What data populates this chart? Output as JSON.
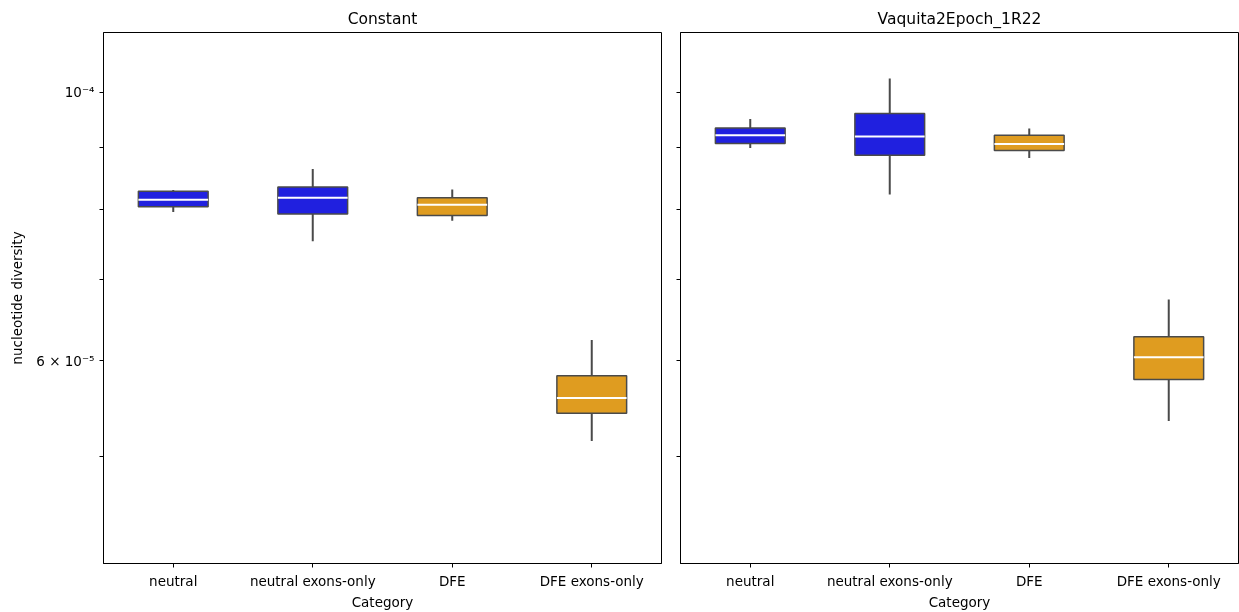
{
  "chart_data": [
    {
      "type": "box",
      "title": "Constant",
      "xlabel": "Category",
      "ylabel": "nucleotide diversity",
      "categories": [
        "neutral",
        "neutral exons-only",
        "DFE",
        "DFE exons-only"
      ],
      "colors": [
        "#2020df",
        "#2020df",
        "#df9c20",
        "#df9c20"
      ],
      "boxes": [
        {
          "low": 7.96e-05,
          "q1": 8.04e-05,
          "median": 8.15e-05,
          "q3": 8.28e-05,
          "high": 8.3e-05
        },
        {
          "low": 7.53e-05,
          "q1": 7.93e-05,
          "median": 8.18e-05,
          "q3": 8.35e-05,
          "high": 8.64e-05
        },
        {
          "low": 7.83e-05,
          "q1": 7.91e-05,
          "median": 8.07e-05,
          "q3": 8.18e-05,
          "high": 8.31e-05
        },
        {
          "low": 5.15e-05,
          "q1": 5.43e-05,
          "median": 5.59e-05,
          "q3": 5.83e-05,
          "high": 6.24e-05
        }
      ],
      "log": "y",
      "ylim": [
        4.08e-05,
        0.000112
      ],
      "yticks": [
        {
          "value": 0.0001,
          "label": "10⁻⁴"
        },
        {
          "value": 9e-05,
          "label": null
        },
        {
          "value": 8e-05,
          "label": null
        },
        {
          "value": 7e-05,
          "label": null
        },
        {
          "value": 6e-05,
          "label": "6 × 10⁻⁵"
        },
        {
          "value": 5e-05,
          "label": null
        }
      ]
    },
    {
      "type": "box",
      "title": "Vaquita2Epoch_1R22",
      "xlabel": "Category",
      "categories": [
        "neutral",
        "neutral exons-only",
        "DFE",
        "DFE exons-only"
      ],
      "colors": [
        "#2020df",
        "#2020df",
        "#df9c20",
        "#df9c20"
      ],
      "boxes": [
        {
          "low": 8.99e-05,
          "q1": 9.07e-05,
          "median": 9.21e-05,
          "q3": 9.34e-05,
          "high": 9.5e-05
        },
        {
          "low": 8.23e-05,
          "q1": 8.87e-05,
          "median": 9.19e-05,
          "q3": 9.6e-05,
          "high": 0.0001026
        },
        {
          "low": 8.82e-05,
          "q1": 8.95e-05,
          "median": 9.06e-05,
          "q3": 9.21e-05,
          "high": 9.33e-05
        },
        {
          "low": 5.35e-05,
          "q1": 5.79e-05,
          "median": 6.04e-05,
          "q3": 6.28e-05,
          "high": 6.74e-05
        }
      ],
      "log": "y",
      "ylim": [
        4.08e-05,
        0.000112
      ],
      "yticks": [
        {
          "value": 0.0001,
          "label": null
        },
        {
          "value": 9e-05,
          "label": null
        },
        {
          "value": 8e-05,
          "label": null
        },
        {
          "value": 7e-05,
          "label": null
        },
        {
          "value": 6e-05,
          "label": null
        },
        {
          "value": 5e-05,
          "label": null
        }
      ],
      "tick_labels": "x"
    }
  ]
}
